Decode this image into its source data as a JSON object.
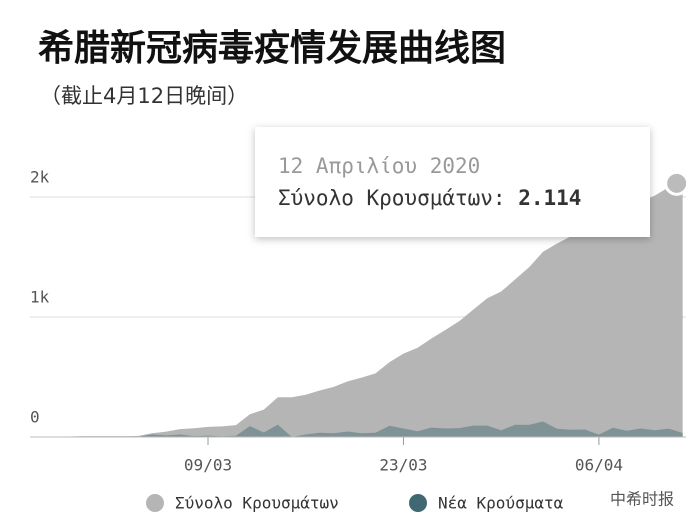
{
  "chart_data": {
    "type": "area",
    "title": "希腊新冠病毒疫情发展曲线图",
    "subtitle": "（截止4月12日晚间）",
    "categories": [
      null,
      null,
      null,
      null,
      null,
      null,
      null,
      null,
      null,
      null,
      null,
      null,
      "09/03",
      null,
      null,
      null,
      null,
      null,
      null,
      null,
      null,
      null,
      null,
      null,
      null,
      null,
      "23/03",
      null,
      null,
      null,
      null,
      null,
      null,
      null,
      null,
      null,
      null,
      null,
      null,
      null,
      "06/04",
      null,
      null,
      null,
      null,
      null,
      null
    ],
    "series": [
      {
        "name": "Σύνολο Κρουσμάτων",
        "color": "#b5b5b5",
        "values": [
          1,
          3,
          4,
          7,
          7,
          7,
          7,
          9,
          31,
          45,
          66,
          73,
          84,
          89,
          99,
          190,
          228,
          331,
          331,
          352,
          387,
          418,
          464,
          495,
          530,
          624,
          695,
          743,
          821,
          892,
          966,
          1061,
          1156,
          1212,
          1314,
          1415,
          1544,
          1613,
          1673,
          1735,
          1755,
          1832,
          1884,
          1955,
          2011,
          2081,
          2114
        ]
      },
      {
        "name": "Νέα Κρούσματα",
        "color": "#3f6872",
        "values": [
          1,
          2,
          1,
          3,
          0,
          0,
          0,
          2,
          22,
          14,
          21,
          7,
          11,
          5,
          10,
          91,
          38,
          103,
          0,
          21,
          35,
          31,
          46,
          31,
          35,
          94,
          71,
          48,
          78,
          71,
          74,
          95,
          95,
          56,
          102,
          101,
          129,
          69,
          60,
          62,
          20,
          77,
          52,
          71,
          56,
          70,
          33
        ]
      }
    ],
    "ylim": [
      0,
      2500
    ],
    "yticks": [
      0,
      {
        "value": 1000,
        "label": "1k"
      },
      {
        "value": 2000,
        "label": "2k"
      }
    ],
    "grid": true,
    "tooltip": {
      "title": "12 Απριλίου 2020",
      "label": "Σύνολο Κρουσμάτων:",
      "value": 2114,
      "value_label": "2.114"
    },
    "watermark": "中希时报"
  }
}
